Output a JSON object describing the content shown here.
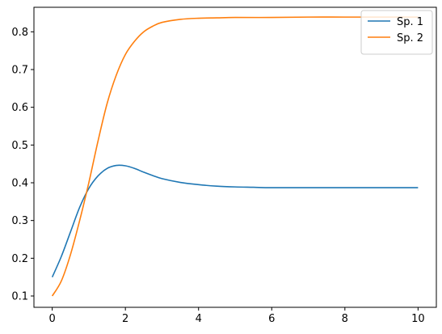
{
  "chart_data": {
    "type": "line",
    "title": "",
    "xlabel": "",
    "ylabel": "",
    "xlim": [
      -0.5,
      10.5
    ],
    "ylim": [
      0.07,
      0.865
    ],
    "x_ticks": [
      0,
      2,
      4,
      6,
      8,
      10
    ],
    "y_ticks": [
      0.1,
      0.2,
      0.3,
      0.4,
      0.5,
      0.6,
      0.7,
      0.8
    ],
    "grid": false,
    "legend_position": "top-right",
    "x_tick_labels": [
      "0",
      "2",
      "4",
      "6",
      "8",
      "10"
    ],
    "y_tick_labels": [
      "0.1",
      "0.2",
      "0.3",
      "0.4",
      "0.5",
      "0.6",
      "0.7",
      "0.8"
    ],
    "series": [
      {
        "name": "Sp. 1",
        "color": "#1f77b4",
        "x": [
          0,
          0.25,
          0.5,
          0.75,
          1.0,
          1.25,
          1.5,
          1.75,
          2.0,
          2.25,
          2.5,
          2.75,
          3.0,
          3.5,
          4.0,
          4.5,
          5.0,
          5.5,
          6.0,
          7.0,
          8.0,
          9.0,
          10.0
        ],
        "y": [
          0.15,
          0.205,
          0.27,
          0.335,
          0.385,
          0.418,
          0.438,
          0.446,
          0.445,
          0.438,
          0.428,
          0.419,
          0.411,
          0.401,
          0.395,
          0.391,
          0.389,
          0.388,
          0.387,
          0.387,
          0.387,
          0.387,
          0.387
        ]
      },
      {
        "name": "Sp. 2",
        "color": "#ff7f0e",
        "x": [
          0,
          0.25,
          0.5,
          0.75,
          1.0,
          1.25,
          1.5,
          1.75,
          2.0,
          2.25,
          2.5,
          2.75,
          3.0,
          3.5,
          4.0,
          4.5,
          5.0,
          6.0,
          7.0,
          8.0,
          9.0,
          10.0
        ],
        "y": [
          0.1,
          0.14,
          0.21,
          0.3,
          0.4,
          0.51,
          0.61,
          0.685,
          0.74,
          0.775,
          0.8,
          0.815,
          0.825,
          0.833,
          0.836,
          0.837,
          0.838,
          0.838,
          0.839,
          0.839,
          0.839,
          0.839
        ]
      }
    ]
  }
}
